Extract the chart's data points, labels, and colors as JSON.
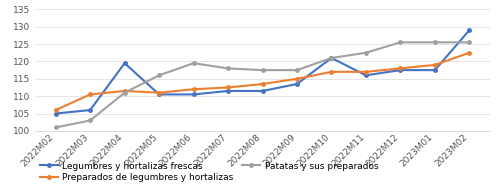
{
  "x_labels": [
    "2022M02",
    "2022M03",
    "2022M04",
    "2022M05",
    "2022M06",
    "2022M07",
    "2022M08",
    "2022M09",
    "2022M10",
    "2022M11",
    "2022M12",
    "2023M01",
    "2023M02"
  ],
  "legumbres": [
    105.0,
    106.0,
    119.5,
    110.5,
    110.5,
    111.5,
    111.5,
    113.5,
    121.0,
    116.0,
    117.5,
    117.5,
    129.0
  ],
  "preparados": [
    106.0,
    110.5,
    111.5,
    111.0,
    112.0,
    112.5,
    113.5,
    115.0,
    117.0,
    117.0,
    118.0,
    119.0,
    122.5
  ],
  "patatas": [
    101.0,
    103.0,
    111.0,
    116.0,
    119.5,
    118.0,
    117.5,
    117.5,
    121.0,
    122.5,
    125.5,
    125.5,
    125.5
  ],
  "ylim": [
    100,
    135
  ],
  "yticks": [
    100,
    105,
    110,
    115,
    120,
    125,
    130,
    135
  ],
  "color_legumbres": "#4472C4",
  "color_preparados": "#ED7D31",
  "color_patatas": "#A0A0A0",
  "legend_legumbres": "Legumbres y hortalizas frescas",
  "legend_preparados": "Preparados de legumbres y hortalizas",
  "legend_patatas": "Patatas y sus preparados",
  "linewidth": 1.5,
  "marker": "o",
  "markersize": 2.5,
  "grid_color": "#E0E0E0",
  "tick_fontsize": 6.5,
  "legend_fontsize": 6.5
}
